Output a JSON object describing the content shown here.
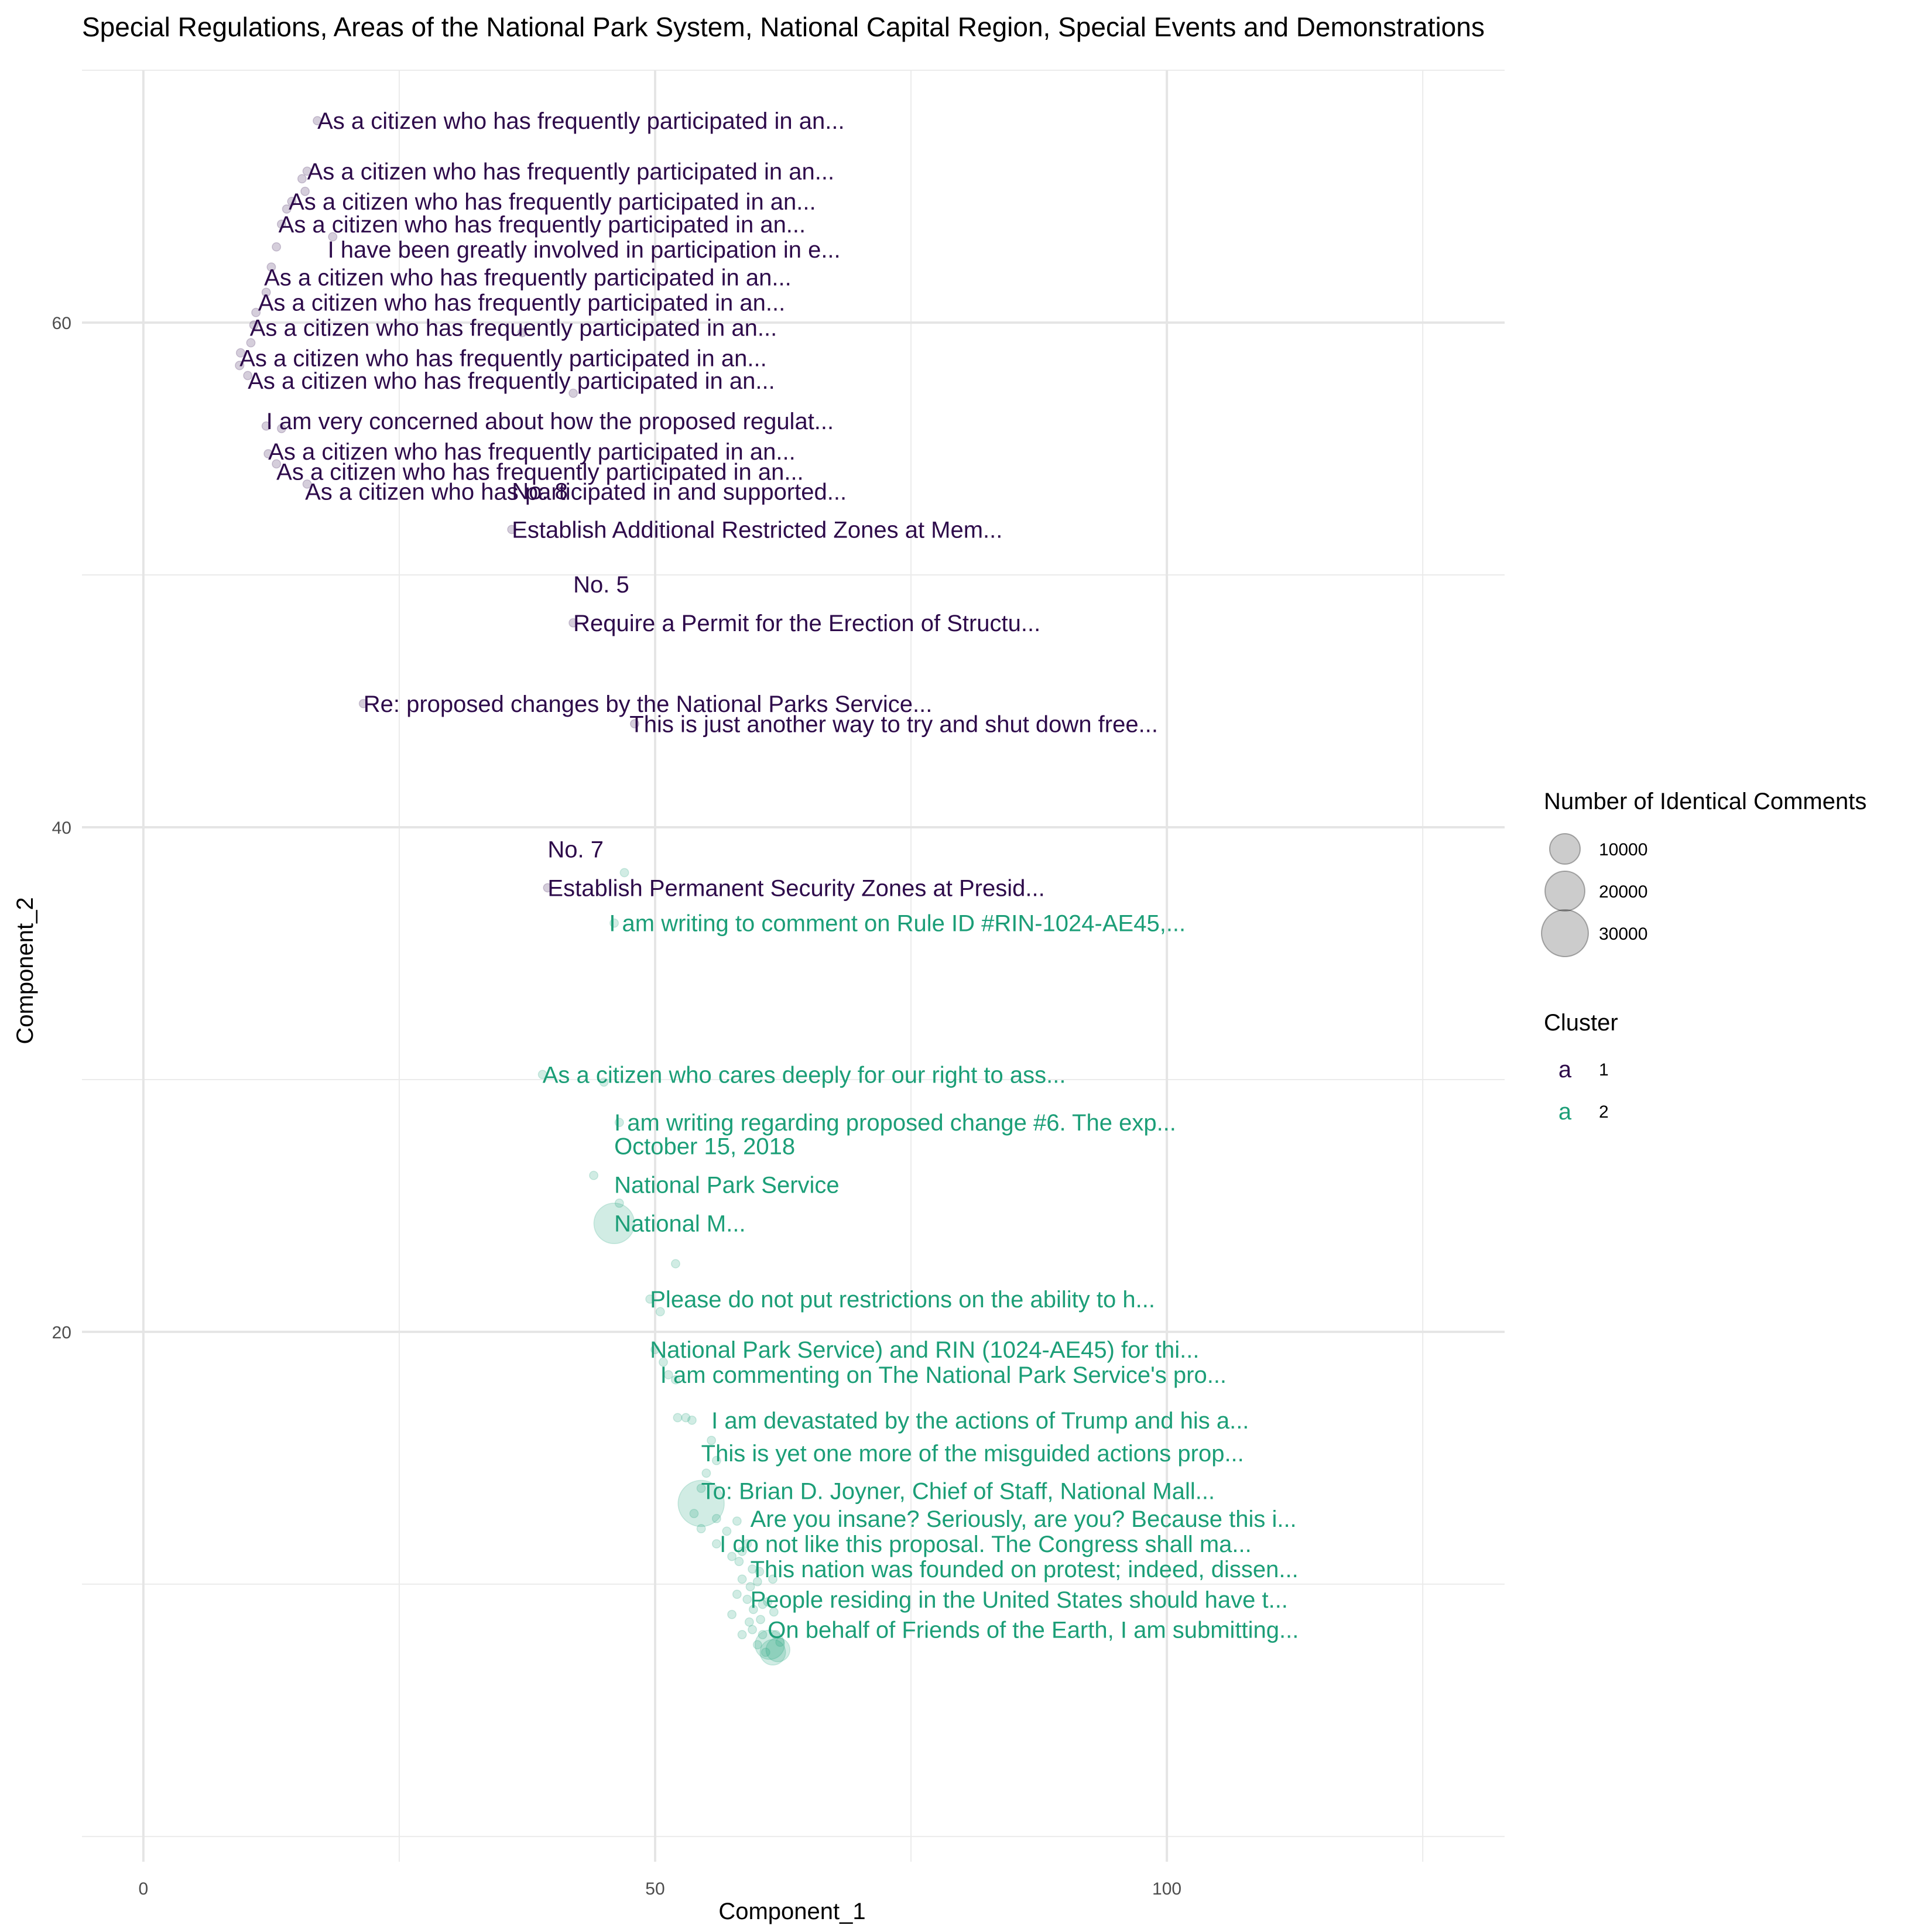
{
  "chart_data": {
    "type": "scatter",
    "title": "Special Regulations, Areas of the National Park System, National Capital Region, Special Events and Demonstrations",
    "xlabel": "Component_1",
    "ylabel": "Component_2",
    "xlim": [
      -6,
      133
    ],
    "ylim": [
      -1,
      70
    ],
    "x_ticks": [
      0,
      50,
      100
    ],
    "y_ticks": [
      20,
      40,
      60
    ],
    "grid": true,
    "legend": {
      "position": "right",
      "size_title": "Number of Identical Comments",
      "size_entries": [
        {
          "value": 10000,
          "label": "10000"
        },
        {
          "value": 20000,
          "label": "20000"
        },
        {
          "value": 30000,
          "label": "30000"
        }
      ],
      "color_title": "Cluster",
      "color_entries": [
        {
          "cluster": 1,
          "label": "1",
          "glyph": "a",
          "color": "#2d0a4a"
        },
        {
          "cluster": 2,
          "label": "2",
          "glyph": "a",
          "color": "#1b9e77"
        }
      ]
    },
    "series": [
      {
        "cluster": 1,
        "color": "#2d0a4a",
        "points": [
          {
            "x": 17,
            "y": 68,
            "n": 1
          },
          {
            "x": 16,
            "y": 66,
            "n": 1
          },
          {
            "x": 15.5,
            "y": 65.7,
            "n": 1
          },
          {
            "x": 15.8,
            "y": 65.2,
            "n": 1
          },
          {
            "x": 14.5,
            "y": 64.8,
            "n": 1
          },
          {
            "x": 14,
            "y": 64.5,
            "n": 1
          },
          {
            "x": 13.5,
            "y": 63.9,
            "n": 1
          },
          {
            "x": 18.5,
            "y": 63.4,
            "n": 1
          },
          {
            "x": 13,
            "y": 63,
            "n": 1
          },
          {
            "x": 12.5,
            "y": 62.2,
            "n": 1
          },
          {
            "x": 12,
            "y": 61.2,
            "n": 1
          },
          {
            "x": 11,
            "y": 60.4,
            "n": 2
          },
          {
            "x": 10.8,
            "y": 59.9,
            "n": 2
          },
          {
            "x": 37,
            "y": 59.6,
            "n": 1
          },
          {
            "x": 10.5,
            "y": 59.2,
            "n": 1
          },
          {
            "x": 9.5,
            "y": 58.8,
            "n": 3
          },
          {
            "x": 9.4,
            "y": 58.3,
            "n": 3
          },
          {
            "x": 10.2,
            "y": 57.9,
            "n": 1
          },
          {
            "x": 42,
            "y": 57.2,
            "n": 1
          },
          {
            "x": 12,
            "y": 55.9,
            "n": 1
          },
          {
            "x": 13.5,
            "y": 55.8,
            "n": 1
          },
          {
            "x": 12.2,
            "y": 54.8,
            "n": 1
          },
          {
            "x": 13,
            "y": 54.4,
            "n": 1
          },
          {
            "x": 16,
            "y": 53.6,
            "n": 1
          },
          {
            "x": 36,
            "y": 51.8,
            "n": 1
          },
          {
            "x": 42,
            "y": 48.1,
            "n": 1
          },
          {
            "x": 21.5,
            "y": 44.9,
            "n": 1
          },
          {
            "x": 48,
            "y": 44.1,
            "n": 1
          },
          {
            "x": 39.5,
            "y": 37.6,
            "n": 1
          }
        ]
      },
      {
        "cluster": 2,
        "color": "#1b9e77",
        "points": [
          {
            "x": 47,
            "y": 38.2,
            "n": 1
          },
          {
            "x": 46,
            "y": 36.2,
            "n": 1
          },
          {
            "x": 39,
            "y": 30.2,
            "n": 1
          },
          {
            "x": 45,
            "y": 29.9,
            "n": 1
          },
          {
            "x": 46.5,
            "y": 28.3,
            "n": 1
          },
          {
            "x": 44,
            "y": 26.2,
            "n": 1
          },
          {
            "x": 46.5,
            "y": 25.1,
            "n": 1
          },
          {
            "x": 46,
            "y": 24.3,
            "n": 21000
          },
          {
            "x": 52,
            "y": 22.7,
            "n": 1
          },
          {
            "x": 49.5,
            "y": 21.3,
            "n": 1
          },
          {
            "x": 50.5,
            "y": 20.8,
            "n": 1
          },
          {
            "x": 50,
            "y": 19.3,
            "n": 1
          },
          {
            "x": 50.8,
            "y": 18.8,
            "n": 1
          },
          {
            "x": 51.3,
            "y": 18.3,
            "n": 1
          },
          {
            "x": 52,
            "y": 18.1,
            "n": 1
          },
          {
            "x": 52.2,
            "y": 16.6,
            "n": 1
          },
          {
            "x": 53,
            "y": 16.6,
            "n": 1
          },
          {
            "x": 53.6,
            "y": 16.5,
            "n": 1
          },
          {
            "x": 55.5,
            "y": 15.7,
            "n": 1
          },
          {
            "x": 56,
            "y": 14.9,
            "n": 1
          },
          {
            "x": 55,
            "y": 14.4,
            "n": 1
          },
          {
            "x": 54.5,
            "y": 13.8,
            "n": 1
          },
          {
            "x": 54.5,
            "y": 13.2,
            "n": 29000
          },
          {
            "x": 53.8,
            "y": 12.8,
            "n": 1
          },
          {
            "x": 56,
            "y": 12.6,
            "n": 1
          },
          {
            "x": 54.5,
            "y": 12.2,
            "n": 1
          },
          {
            "x": 57,
            "y": 12.1,
            "n": 1
          },
          {
            "x": 58,
            "y": 12.5,
            "n": 1
          },
          {
            "x": 56,
            "y": 11.6,
            "n": 1
          },
          {
            "x": 58.5,
            "y": 11.3,
            "n": 1
          },
          {
            "x": 59,
            "y": 11.6,
            "n": 1
          },
          {
            "x": 57.5,
            "y": 11.1,
            "n": 1
          },
          {
            "x": 58.2,
            "y": 10.9,
            "n": 1
          },
          {
            "x": 59.5,
            "y": 10.6,
            "n": 1
          },
          {
            "x": 60.2,
            "y": 10.5,
            "n": 1
          },
          {
            "x": 61.5,
            "y": 10.2,
            "n": 1
          },
          {
            "x": 58.5,
            "y": 10.2,
            "n": 1
          },
          {
            "x": 60,
            "y": 10.1,
            "n": 1
          },
          {
            "x": 59.3,
            "y": 9.9,
            "n": 1
          },
          {
            "x": 58,
            "y": 9.6,
            "n": 1
          },
          {
            "x": 59,
            "y": 9.4,
            "n": 1
          },
          {
            "x": 61,
            "y": 9.3,
            "n": 1
          },
          {
            "x": 60.5,
            "y": 9.2,
            "n": 1
          },
          {
            "x": 59.6,
            "y": 9.0,
            "n": 1
          },
          {
            "x": 57.5,
            "y": 8.8,
            "n": 1
          },
          {
            "x": 59.2,
            "y": 8.5,
            "n": 1
          },
          {
            "x": 60.3,
            "y": 8.6,
            "n": 1
          },
          {
            "x": 61.6,
            "y": 8.9,
            "n": 1
          },
          {
            "x": 59.5,
            "y": 8.2,
            "n": 1
          },
          {
            "x": 58.5,
            "y": 8.0,
            "n": 1
          },
          {
            "x": 60.5,
            "y": 8.0,
            "n": 1
          },
          {
            "x": 61.8,
            "y": 8.0,
            "n": 1
          },
          {
            "x": 60,
            "y": 7.6,
            "n": 1
          },
          {
            "x": 62.2,
            "y": 7.7,
            "n": 1
          },
          {
            "x": 60.8,
            "y": 7.3,
            "n": 1
          },
          {
            "x": 61.2,
            "y": 7.6,
            "n": 9000
          },
          {
            "x": 62,
            "y": 7.4,
            "n": 5000
          },
          {
            "x": 61.5,
            "y": 7.3,
            "n": 6000
          }
        ]
      }
    ],
    "labels": [
      {
        "x": 17,
        "y": 68,
        "cluster": 1,
        "lines": [
          "As a citizen who has frequently participated in an..."
        ]
      },
      {
        "x": 16,
        "y": 66,
        "cluster": 1,
        "lines": [
          "As a citizen who has frequently participated in an..."
        ]
      },
      {
        "x": 14.2,
        "y": 64.8,
        "cluster": 1,
        "lines": [
          "As a citizen who has frequently participated in an..."
        ]
      },
      {
        "x": 13.2,
        "y": 63.9,
        "cluster": 1,
        "lines": [
          "As a citizen who has frequently participated in an..."
        ]
      },
      {
        "x": 18,
        "y": 62.9,
        "cluster": 1,
        "lines": [
          "I have been greatly involved in participation in e..."
        ]
      },
      {
        "x": 11.8,
        "y": 61.8,
        "cluster": 1,
        "lines": [
          "As a citizen who has frequently participated in an..."
        ]
      },
      {
        "x": 11.2,
        "y": 60.8,
        "cluster": 1,
        "lines": [
          "As a citizen who has frequently participated in an..."
        ]
      },
      {
        "x": 10.4,
        "y": 59.8,
        "cluster": 1,
        "lines": [
          "As a citizen who has frequently participated in an..."
        ]
      },
      {
        "x": 9.4,
        "y": 58.6,
        "cluster": 1,
        "lines": [
          "As a citizen who has frequently participated in an..."
        ]
      },
      {
        "x": 10.2,
        "y": 57.7,
        "cluster": 1,
        "lines": [
          "As a citizen who has frequently participated in an..."
        ]
      },
      {
        "x": 12,
        "y": 56.1,
        "cluster": 1,
        "lines": [
          "I am very concerned about how the proposed regulat..."
        ]
      },
      {
        "x": 12.2,
        "y": 54.9,
        "cluster": 1,
        "lines": [
          "As a citizen who has frequently participated in an..."
        ]
      },
      {
        "x": 13,
        "y": 54.1,
        "cluster": 1,
        "lines": [
          "As a citizen who has frequently participated in an..."
        ]
      },
      {
        "x": 15.8,
        "y": 53.3,
        "cluster": 1,
        "lines": [
          "As a citizen who has participated in and supported..."
        ]
      },
      {
        "x": 36,
        "y": 51.8,
        "cluster": 1,
        "lines": [
          "No. 8",
          "",
          "Establish Additional Restricted Zones at Mem..."
        ]
      },
      {
        "x": 42,
        "y": 48.1,
        "cluster": 1,
        "lines": [
          "No. 5",
          "",
          "Require a Permit for the Erection of Structu..."
        ]
      },
      {
        "x": 21.5,
        "y": 44.9,
        "cluster": 1,
        "lines": [
          "Re: proposed changes by the National Parks Service..."
        ]
      },
      {
        "x": 47.5,
        "y": 44.1,
        "cluster": 1,
        "lines": [
          "This is just another way to try and shut down free..."
        ]
      },
      {
        "x": 39.5,
        "y": 37.6,
        "cluster": 1,
        "lines": [
          "No. 7",
          "",
          "Establish Permanent Security Zones at Presid..."
        ]
      },
      {
        "x": 45.5,
        "y": 36.2,
        "cluster": 2,
        "lines": [
          "I am writing to comment on Rule ID #RIN-1024-AE45,..."
        ]
      },
      {
        "x": 39,
        "y": 30.2,
        "cluster": 2,
        "lines": [
          "As a citizen who cares deeply for our right to ass..."
        ]
      },
      {
        "x": 46,
        "y": 28.3,
        "cluster": 2,
        "lines": [
          "I am writing regarding proposed change #6. The exp..."
        ]
      },
      {
        "x": 46,
        "y": 24.3,
        "cluster": 2,
        "lines": [
          "October 15, 2018",
          "",
          "National Park Service",
          "",
          "National M..."
        ]
      },
      {
        "x": 49.5,
        "y": 21.3,
        "cluster": 2,
        "lines": [
          "Please do not put restrictions on the ability to h..."
        ]
      },
      {
        "x": 49.5,
        "y": 19.3,
        "cluster": 2,
        "lines": [
          "National Park Service) and RIN (1024-AE45) for thi..."
        ]
      },
      {
        "x": 50.5,
        "y": 18.3,
        "cluster": 2,
        "lines": [
          "I am commenting on The National Park Service's pro..."
        ]
      },
      {
        "x": 55.5,
        "y": 16.5,
        "cluster": 2,
        "lines": [
          "I am devastated by the actions of  Trump and his a..."
        ]
      },
      {
        "x": 54.5,
        "y": 15.2,
        "cluster": 2,
        "lines": [
          "This is yet one more of the misguided actions prop..."
        ]
      },
      {
        "x": 54.5,
        "y": 13.7,
        "cluster": 2,
        "lines": [
          "To: Brian D. Joyner, Chief of Staff, National Mall..."
        ]
      },
      {
        "x": 59.3,
        "y": 12.6,
        "cluster": 2,
        "lines": [
          "Are you insane? Seriously, are you? Because this i..."
        ]
      },
      {
        "x": 56.3,
        "y": 11.6,
        "cluster": 2,
        "lines": [
          "I do not like this proposal. The Congress shall ma..."
        ]
      },
      {
        "x": 59.3,
        "y": 10.6,
        "cluster": 2,
        "lines": [
          "This nation was founded on protest; indeed, dissen..."
        ]
      },
      {
        "x": 59.3,
        "y": 9.4,
        "cluster": 2,
        "lines": [
          "People residing in the United States should have t..."
        ]
      },
      {
        "x": 61,
        "y": 8.2,
        "cluster": 2,
        "lines": [
          "On behalf of Friends of the Earth, I am submitting..."
        ]
      }
    ]
  }
}
